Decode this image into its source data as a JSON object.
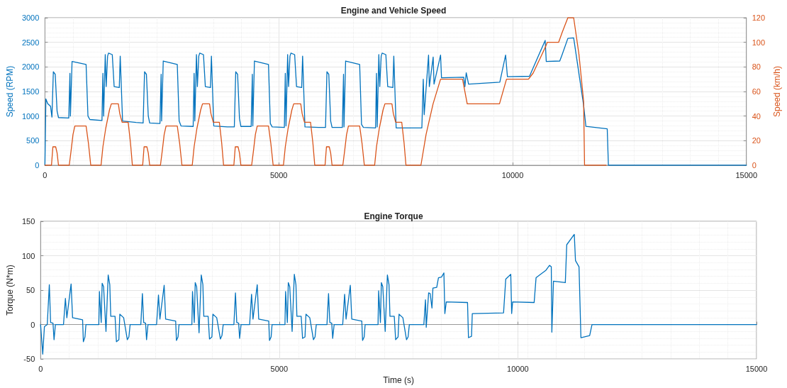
{
  "chart_data": [
    {
      "type": "line",
      "title": "Engine and Vehicle Speed",
      "ylabel": "Speed (RPM)",
      "y2label": "Speed (km/h)",
      "xlim": [
        0,
        15000
      ],
      "xticks": [
        0,
        5000,
        10000,
        15000
      ],
      "ylim": [
        0,
        3000
      ],
      "yticks": [
        0,
        500,
        1000,
        1500,
        2000,
        2500,
        3000
      ],
      "y2lim": [
        0,
        120
      ],
      "y2ticks": [
        0,
        20,
        40,
        60,
        80,
        100,
        120
      ],
      "grid": true,
      "marker": "none",
      "series": [
        {
          "color": "#0072bd",
          "axis": "y",
          "x": [
            0,
            20,
            60,
            120,
            150,
            180,
            220,
            260,
            290,
            510,
            535,
            545,
            580,
            880,
            920,
            960,
            1220,
            1240,
            1255,
            1290,
            1310,
            1340,
            1360,
            1440,
            1480,
            1590,
            1610,
            1660,
            1950,
            2100,
            2130,
            2170,
            2210,
            2240,
            2460,
            2485,
            2495,
            2530,
            2830,
            2870,
            2910,
            3170,
            3190,
            3205,
            3240,
            3260,
            3290,
            3310,
            3390,
            3430,
            3540,
            3560,
            3610,
            3900,
            4050,
            4080,
            4120,
            4160,
            4190,
            4410,
            4435,
            4445,
            4480,
            4780,
            4820,
            4860,
            5120,
            5140,
            5155,
            5190,
            5210,
            5240,
            5260,
            5340,
            5380,
            5490,
            5510,
            5560,
            5850,
            6000,
            6030,
            6070,
            6110,
            6140,
            6360,
            6385,
            6395,
            6430,
            6730,
            6770,
            6810,
            7070,
            7090,
            7105,
            7140,
            7160,
            7190,
            7210,
            7290,
            7330,
            7440,
            7460,
            7510,
            7800,
            8060,
            8090,
            8110,
            8203,
            8220,
            8302,
            8320,
            8460,
            8480,
            8955,
            8980,
            9009,
            9059,
            9727,
            9851,
            9890,
            10362,
            10697,
            10720,
            11009,
            11060,
            11182,
            11306,
            11519,
            11568,
            12024,
            12049,
            15000
          ],
          "values": [
            0,
            1350,
            1250,
            1200,
            980,
            1900,
            1850,
            1100,
            970,
            960,
            1870,
            1000,
            2110,
            2050,
            1000,
            930,
            910,
            1870,
            1000,
            2250,
            1600,
            2220,
            2280,
            2250,
            1600,
            1580,
            2220,
            900,
            870,
            860,
            1900,
            1850,
            1000,
            860,
            850,
            1850,
            900,
            2120,
            2050,
            900,
            800,
            790,
            1870,
            900,
            2250,
            1600,
            2220,
            2280,
            2250,
            1600,
            1580,
            2220,
            800,
            780,
            780,
            1900,
            1850,
            950,
            790,
            790,
            1850,
            800,
            2120,
            2050,
            850,
            780,
            770,
            1870,
            800,
            2250,
            1600,
            2220,
            2280,
            2250,
            1600,
            1580,
            2220,
            780,
            770,
            770,
            1900,
            1850,
            900,
            770,
            770,
            1850,
            780,
            2120,
            2050,
            830,
            770,
            760,
            1870,
            780,
            2250,
            1600,
            2220,
            2280,
            2250,
            1600,
            1580,
            2220,
            760,
            760,
            760,
            1750,
            1030,
            2240,
            1600,
            2200,
            1650,
            2240,
            1780,
            1790,
            1600,
            1880,
            1650,
            1690,
            2240,
            1800,
            1810,
            2540,
            2110,
            2120,
            2250,
            2580,
            2590,
            1220,
            790,
            740,
            0,
            0
          ]
        },
        {
          "color": "#d95319",
          "axis": "y2",
          "x": [
            0,
            140,
            170,
            230,
            260,
            290,
            520,
            560,
            600,
            640,
            880,
            930,
            980,
            1200,
            1240,
            1300,
            1380,
            1420,
            1570,
            1600,
            1650,
            1780,
            1830,
            1870,
            2090,
            2120,
            2180,
            2210,
            2240,
            2470,
            2510,
            2550,
            2590,
            2830,
            2880,
            2930,
            3150,
            3190,
            3250,
            3330,
            3370,
            3520,
            3550,
            3600,
            3730,
            3780,
            3820,
            4040,
            4070,
            4130,
            4160,
            4190,
            4420,
            4460,
            4500,
            4540,
            4780,
            4830,
            4880,
            5100,
            5140,
            5200,
            5280,
            5320,
            5470,
            5500,
            5550,
            5680,
            5730,
            5770,
            5990,
            6020,
            6080,
            6110,
            6140,
            6370,
            6410,
            6450,
            6490,
            6730,
            6780,
            6830,
            7050,
            7090,
            7150,
            7230,
            7270,
            7420,
            7450,
            7500,
            7630,
            7680,
            7720,
            8040,
            8150,
            8300,
            8460,
            8930,
            9030,
            9720,
            9870,
            10340,
            10440,
            10712,
            10740,
            10984,
            11060,
            11182,
            11306,
            11420,
            11519,
            11539,
            12000
          ],
          "values": [
            0,
            0,
            15,
            15,
            10,
            0,
            0,
            12,
            25,
            32,
            32,
            18,
            0,
            0,
            15,
            30,
            45,
            50,
            50,
            42,
            35,
            35,
            18,
            0,
            0,
            15,
            15,
            10,
            0,
            0,
            12,
            25,
            32,
            32,
            18,
            0,
            0,
            15,
            30,
            45,
            50,
            50,
            42,
            35,
            35,
            18,
            0,
            0,
            15,
            15,
            10,
            0,
            0,
            12,
            25,
            32,
            32,
            18,
            0,
            0,
            15,
            30,
            45,
            50,
            50,
            42,
            35,
            35,
            18,
            0,
            0,
            15,
            15,
            10,
            0,
            0,
            12,
            25,
            32,
            32,
            18,
            0,
            0,
            15,
            30,
            45,
            50,
            50,
            42,
            35,
            35,
            18,
            0,
            0,
            25,
            50,
            70,
            70,
            50,
            50,
            70,
            70,
            75,
            97,
            100,
            100,
            108,
            120,
            120,
            90,
            52,
            0,
            0
          ]
        }
      ]
    },
    {
      "type": "line",
      "title": "Engine Torque",
      "xlabel": "Time (s)",
      "ylabel": "Torque (N*m)",
      "xlim": [
        0,
        15000
      ],
      "xticks": [
        0,
        5000,
        10000,
        15000
      ],
      "ylim": [
        -50,
        150
      ],
      "yticks": [
        -50,
        0,
        50,
        100,
        150
      ],
      "grid": true,
      "marker": "none",
      "series": [
        {
          "color": "#0072bd",
          "x": [
            0,
            45,
            80,
            140,
            183,
            210,
            260,
            282,
            310,
            480,
            520,
            550,
            639,
            670,
            880,
            896,
            930,
            950,
            1220,
            1233,
            1270,
            1290,
            1320,
            1370,
            1416,
            1450,
            1470,
            1560,
            1589,
            1640,
            1660,
            1740,
            1817,
            1850,
            1876,
            2100,
            2133,
            2160,
            2200,
            2220,
            2250,
            2430,
            2470,
            2500,
            2589,
            2620,
            2830,
            2846,
            2880,
            2900,
            3170,
            3183,
            3220,
            3240,
            3270,
            3320,
            3366,
            3400,
            3420,
            3510,
            3539,
            3590,
            3610,
            3690,
            3767,
            3800,
            3826,
            4050,
            4083,
            4110,
            4150,
            4170,
            4200,
            4380,
            4420,
            4450,
            4539,
            4570,
            4780,
            4796,
            4830,
            4850,
            5120,
            5133,
            5170,
            5190,
            5220,
            5270,
            5316,
            5350,
            5370,
            5460,
            5489,
            5540,
            5560,
            5640,
            5717,
            5750,
            5776,
            6000,
            6033,
            6060,
            6100,
            6120,
            6150,
            6330,
            6370,
            6400,
            6489,
            6520,
            6730,
            6746,
            6780,
            6800,
            7070,
            7083,
            7120,
            7140,
            7170,
            7220,
            7266,
            7300,
            7320,
            7410,
            7439,
            7490,
            7510,
            7590,
            7667,
            7700,
            7726,
            8030,
            8064,
            8080,
            8130,
            8162,
            8200,
            8220,
            8300,
            8336,
            8400,
            8450,
            8470,
            8500,
            8945,
            8965,
            9029,
            9045,
            9700,
            9746,
            9851,
            9870,
            9890,
            10341,
            10381,
            10589,
            10662,
            10700,
            10712,
            10746,
            10994,
            11024,
            11182,
            11207,
            11281,
            11321,
            11504,
            11553,
            15000
          ],
          "values": [
            0,
            -43,
            -3,
            0,
            58,
            3,
            2,
            -22,
            0,
            0,
            38,
            10,
            59,
            10,
            7,
            -25,
            -18,
            0,
            0,
            48,
            3,
            60,
            55,
            -10,
            72,
            58,
            12,
            12,
            -25,
            -22,
            15,
            10,
            -22,
            -18,
            0,
            0,
            45,
            3,
            2,
            -22,
            0,
            0,
            43,
            8,
            57,
            8,
            5,
            -23,
            -18,
            0,
            0,
            48,
            3,
            61,
            55,
            -12,
            72,
            58,
            12,
            12,
            -21,
            -18,
            15,
            10,
            -21,
            -16,
            0,
            0,
            46,
            3,
            2,
            -20,
            0,
            0,
            44,
            8,
            58,
            8,
            5,
            -23,
            -18,
            0,
            0,
            48,
            3,
            61,
            55,
            -10,
            73,
            58,
            12,
            12,
            -20,
            -18,
            15,
            10,
            -22,
            -18,
            0,
            0,
            45,
            3,
            2,
            -20,
            0,
            0,
            44,
            8,
            57,
            8,
            5,
            -23,
            -18,
            0,
            0,
            49,
            3,
            61,
            55,
            -10,
            72,
            58,
            12,
            12,
            -22,
            -18,
            15,
            10,
            -22,
            -18,
            0,
            0,
            36,
            -4,
            46,
            45,
            24,
            53,
            54,
            68,
            69,
            75,
            16,
            33,
            32,
            -19,
            -17,
            16,
            17,
            66,
            73,
            16,
            33,
            32,
            68,
            79,
            86,
            84,
            -11,
            63,
            61,
            116,
            131,
            93,
            84,
            -19,
            -16,
            0,
            0
          ]
        }
      ]
    }
  ]
}
